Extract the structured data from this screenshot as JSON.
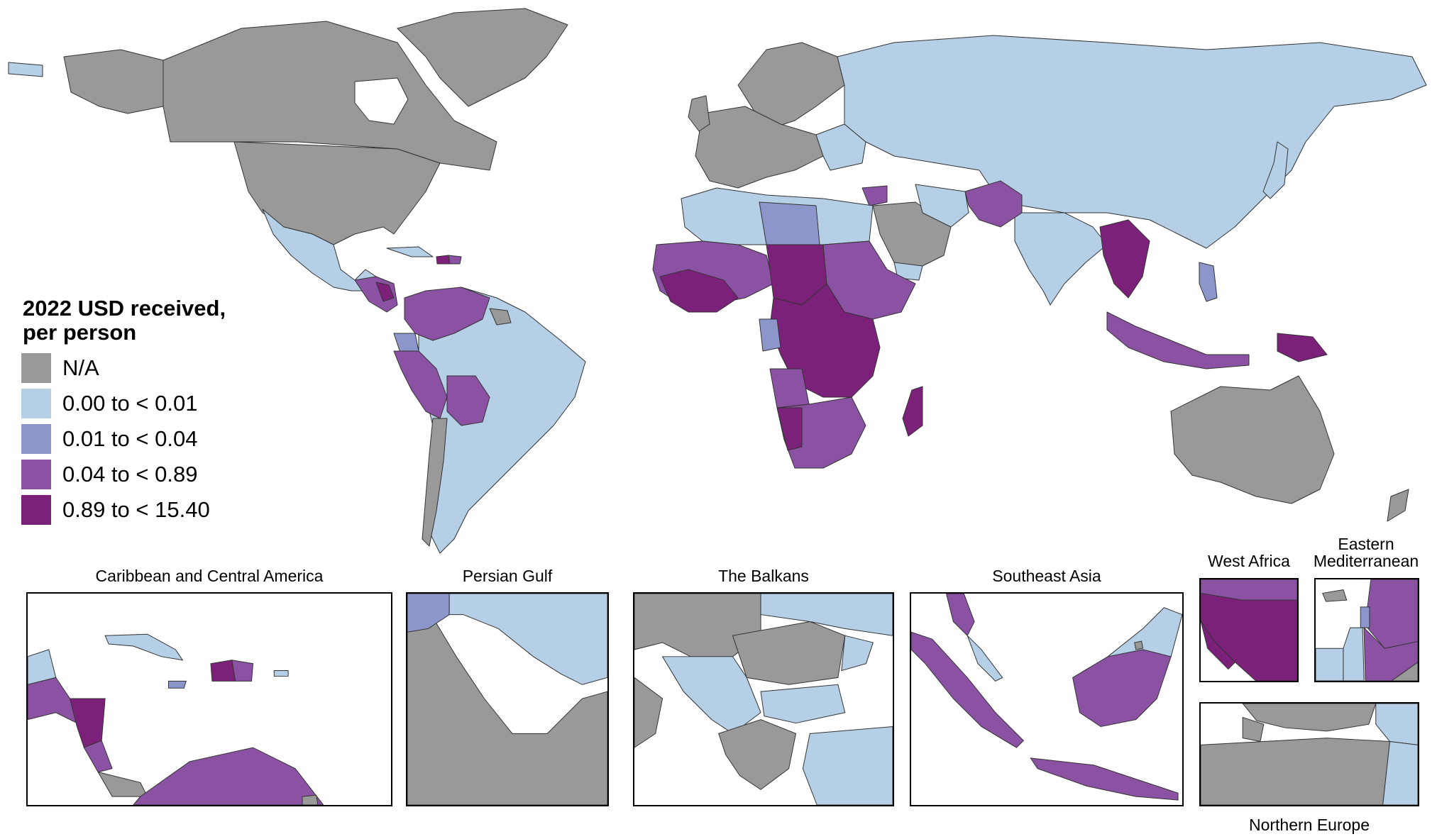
{
  "legend": {
    "title_line1": "2022 USD received,",
    "title_line2": "per person",
    "items": [
      {
        "label": "N/A",
        "color": "#999999"
      },
      {
        "label": "0.00 to < 0.01",
        "color": "#b5cfe6"
      },
      {
        "label": "0.01 to < 0.04",
        "color": "#8c96cb"
      },
      {
        "label": "0.04 to < 0.89",
        "color": "#8b52a3"
      },
      {
        "label": "0.89 to < 15.40",
        "color": "#7c2179"
      }
    ]
  },
  "insets": [
    {
      "id": "caribbean",
      "title": "Caribbean and Central America"
    },
    {
      "id": "persian-gulf",
      "title": "Persian Gulf"
    },
    {
      "id": "balkans",
      "title": "The Balkans"
    },
    {
      "id": "southeast-asia",
      "title": "Southeast Asia"
    },
    {
      "id": "west-africa",
      "title": "West Africa"
    },
    {
      "id": "eastern-med",
      "title_line1": "Eastern",
      "title_line2": "Mediterranean"
    },
    {
      "id": "northern-europe",
      "title": "Northern Europe"
    }
  ]
}
